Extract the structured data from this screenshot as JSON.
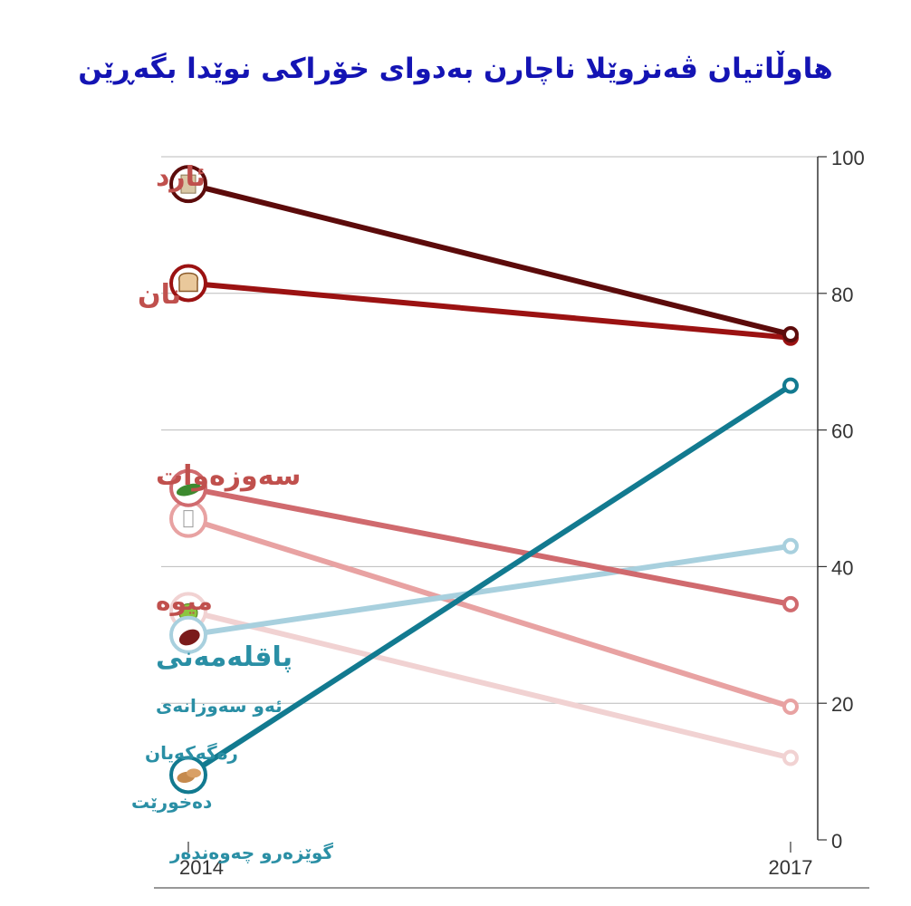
{
  "chart_data": {
    "type": "line",
    "title": "هاوڵاتیان ڤەنزوێلا ناچارن بەدوای خۆراکی نوێدا بگەڕێن",
    "x": [
      "2014",
      "2017"
    ],
    "ylim": [
      0,
      100
    ],
    "yticks": [
      0,
      20,
      40,
      60,
      80,
      100
    ],
    "grid": true,
    "series": [
      {
        "name": "ئارد",
        "values": [
          96,
          74
        ],
        "color": "#5c0b0b",
        "icon": "flour-bag-icon",
        "label_color": "#c0504d"
      },
      {
        "name": "نان",
        "values": [
          81.5,
          73.5
        ],
        "color": "#9b1212",
        "icon": "bread-icon",
        "label_color": "#c0504d"
      },
      {
        "name": "سەوزەوات",
        "values": [
          51.5,
          34.5
        ],
        "color": "#d06a6e",
        "icon": "vegetables-icon",
        "label_color": "#c0504d"
      },
      {
        "name": "",
        "values": [
          47,
          19.5
        ],
        "color": "#e8a2a2",
        "icon": "milk-icon",
        "label_color": "#c0504d"
      },
      {
        "name": "میوە",
        "values": [
          33.5,
          12
        ],
        "color": "#f1d2d2",
        "icon": "apple-icon",
        "label_color": "#c0504d"
      },
      {
        "name": "پاقلەمەنی",
        "values": [
          30,
          43
        ],
        "color": "#a8d0de",
        "icon": "beans-icon",
        "label_color": "#2a8fa5"
      },
      {
        "name": "ئەو سەوزانەی رەگەکەیان دەخورێت",
        "values": [
          9.5,
          66.5
        ],
        "color": "#127a90",
        "icon": "tubers-icon",
        "label_color": "#2a8fa5"
      }
    ],
    "side_labels": [
      "ئارد",
      "نان",
      "سەوزەوات",
      "میوە",
      "پاقلەمەنی",
      "ئەو سەوزانەی",
      "رەگەکەیان",
      "دەخورێت",
      "گوێزەرو چەوەندەر"
    ]
  },
  "colors": {
    "title": "#1414b4",
    "grid": "#bbbbbb",
    "axis": "#333333",
    "red_label": "#c0504d",
    "blue_label": "#2a8fa5"
  }
}
